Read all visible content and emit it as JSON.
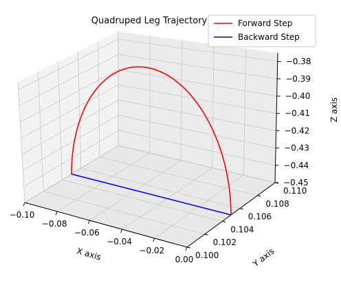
{
  "chart_data": {
    "type": "line",
    "projection": "3d",
    "title": "Quadruped Leg Trajectory",
    "xlabel": "X axis",
    "ylabel": "Y axis",
    "zlabel": "Z axis",
    "xlim": [
      -0.1,
      0.0
    ],
    "ylim": [
      0.1,
      0.11
    ],
    "zlim": [
      -0.45,
      -0.375
    ],
    "x_ticks": [
      "−0.10",
      "−0.08",
      "−0.06",
      "−0.04",
      "−0.02",
      "0.00"
    ],
    "y_ticks": [
      "0.100",
      "0.102",
      "0.104",
      "0.106",
      "0.108",
      "0.110"
    ],
    "z_ticks": [
      "−0.38",
      "−0.39",
      "−0.40",
      "−0.41",
      "−0.42",
      "−0.43",
      "−0.44",
      "−0.45"
    ],
    "grid": true,
    "legend_position": "top-right",
    "series": [
      {
        "name": "Forward Step",
        "color": "#ff0000",
        "shape": "semi-ellipse",
        "x_range": [
          -0.1,
          0.0
        ],
        "y": 0.105,
        "z_base": -0.45,
        "z_peak": -0.38
      },
      {
        "name": "Backward Step",
        "color": "#0000ff",
        "shape": "straight line",
        "x_range": [
          -0.1,
          0.0
        ],
        "y": 0.105,
        "z": -0.45
      }
    ]
  }
}
